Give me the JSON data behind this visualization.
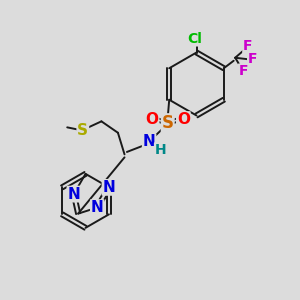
{
  "bg_color": "#dcdcdc",
  "bond_color": "#1a1a1a",
  "atoms": {
    "Cl": {
      "color": "#00bb00",
      "fontsize": 10
    },
    "F": {
      "color": "#cc00cc",
      "fontsize": 10
    },
    "S_sulfonyl": {
      "color": "#cc6600",
      "fontsize": 12
    },
    "O": {
      "color": "#ff0000",
      "fontsize": 11
    },
    "N": {
      "color": "#0000dd",
      "fontsize": 11
    },
    "H": {
      "color": "#008888",
      "fontsize": 10
    },
    "S_thio": {
      "color": "#aaaa00",
      "fontsize": 11
    }
  }
}
